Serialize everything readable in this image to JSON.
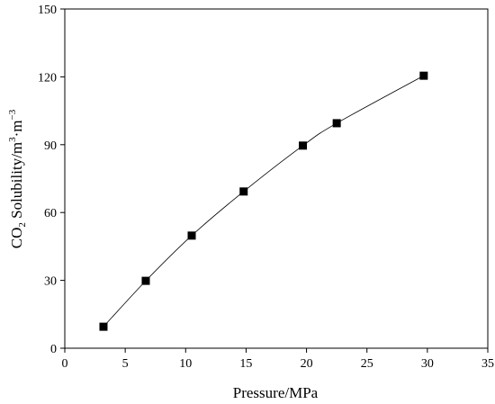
{
  "chart_data": {
    "type": "line",
    "xlabel": "Pressure/MPa",
    "ylabel": {
      "prefix": "CO",
      "prefix_sub": "2",
      "main": " Solubility/m",
      "sup1": "3",
      "mid": "·m",
      "sup2": "−3"
    },
    "xlim": [
      0,
      35
    ],
    "ylim": [
      0,
      150
    ],
    "xticks": [
      0,
      5,
      10,
      15,
      20,
      25,
      30,
      35
    ],
    "yticks": [
      0,
      30,
      60,
      90,
      120,
      150
    ],
    "grid": false,
    "legend": "none",
    "marker": "square",
    "series": [
      {
        "x": [
          3.2,
          6.7,
          10.5,
          14.8,
          19.7,
          22.5,
          29.7
        ],
        "y": [
          9.5,
          29.8,
          49.8,
          69.3,
          89.6,
          99.5,
          120.5
        ]
      }
    ]
  }
}
